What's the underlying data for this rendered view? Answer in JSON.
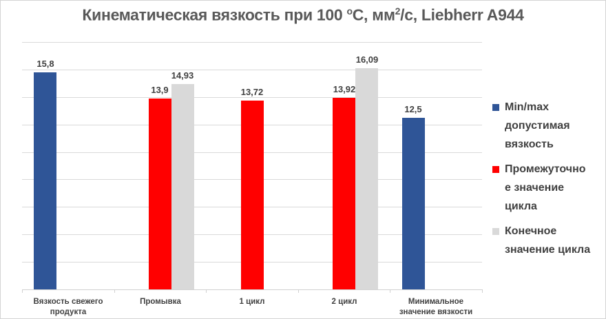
{
  "chart_data": {
    "type": "bar",
    "title": "Кинематическая вязкость при 100 °С, мм²/с, Liebherr A944",
    "title_parts": {
      "main": "Кинематическая вязкость при 100 ",
      "deg": "о",
      "mid": "С, мм",
      "sup2": "2",
      "end": "/с, Liebherr A944"
    },
    "xlabel": "",
    "ylabel": "",
    "ylim": [
      0,
      18
    ],
    "y_gridlines": [
      2,
      4,
      6,
      8,
      10,
      12,
      14,
      16,
      18
    ],
    "y_tick_labels_visible": false,
    "grid": true,
    "legend_position": "right",
    "categories": [
      "Вязкость свежего продукта",
      "Промывка",
      "1 цикл",
      "2 цикл",
      "Минимальное значение вязкости"
    ],
    "category_lines": [
      [
        "Вязкость свежего",
        "продукта"
      ],
      [
        "Промывка"
      ],
      [
        "1 цикл"
      ],
      [
        "2 цикл"
      ],
      [
        "Минимальное",
        "значение вязкости"
      ]
    ],
    "series": [
      {
        "name": "Min/max допустимая вязкость",
        "legend_lines": [
          "Min/max",
          "допустимая",
          "вязкость"
        ],
        "color": "#2f5597",
        "values": [
          15.8,
          null,
          null,
          null,
          12.5
        ],
        "labels": [
          "15,8",
          null,
          null,
          null,
          "12,5"
        ]
      },
      {
        "name": "Промежуточное значение цикла",
        "legend_lines": [
          "Промежуточно",
          "е значение",
          "цикла"
        ],
        "color": "#ff0000",
        "values": [
          null,
          13.9,
          13.72,
          13.92,
          null
        ],
        "labels": [
          null,
          "13,9",
          "13,72",
          "13,92",
          null
        ]
      },
      {
        "name": "Конечное значение цикла",
        "legend_lines": [
          "Конечное",
          "значение цикла"
        ],
        "color": "#d9d9d9",
        "values": [
          null,
          14.93,
          null,
          16.09,
          null
        ],
        "labels": [
          null,
          "14,93",
          null,
          "16,09",
          null
        ]
      }
    ]
  }
}
